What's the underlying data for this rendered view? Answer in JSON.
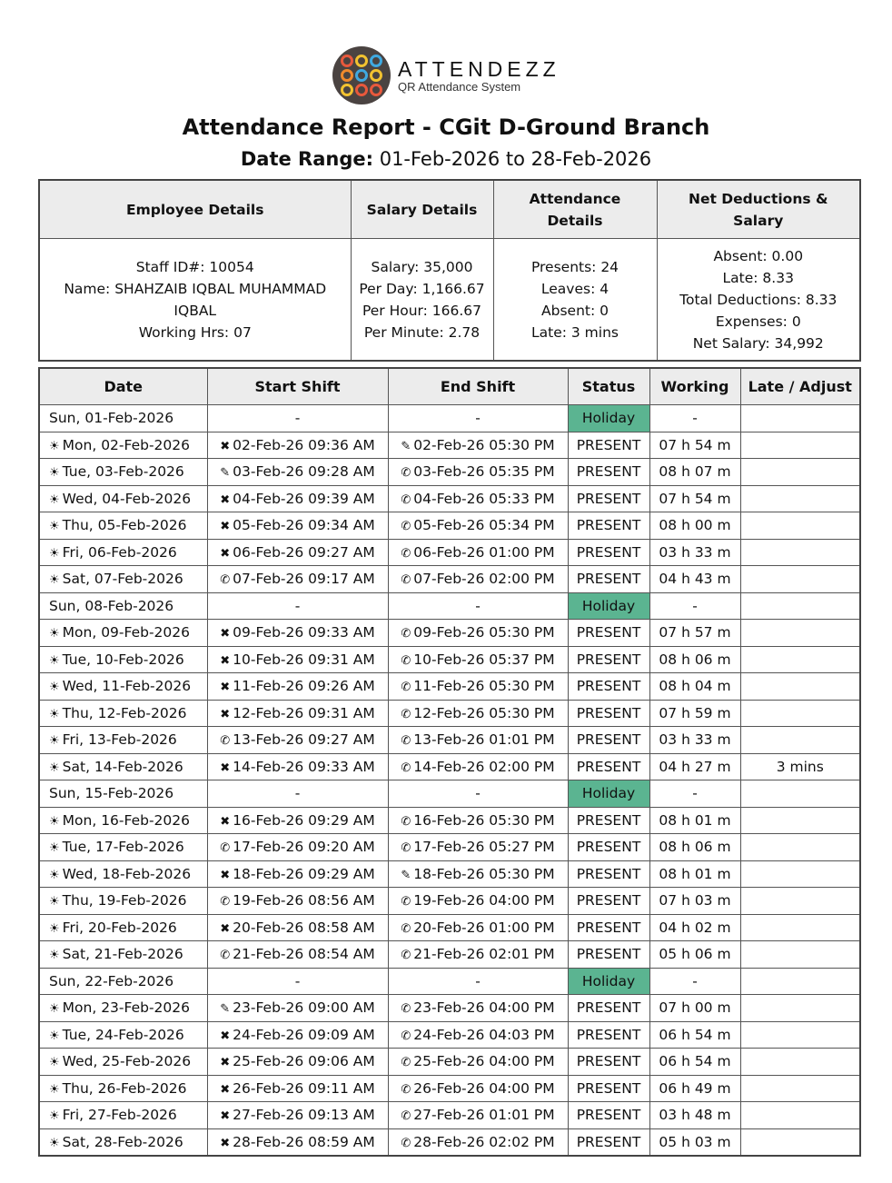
{
  "logo": {
    "name": "ATTENDEZZ",
    "tagline": "QR Attendance System"
  },
  "title": "Attendance Report - CGit D-Ground Branch",
  "date_range": {
    "label": "Date Range:",
    "value": "01-Feb-2026 to 28-Feb-2026"
  },
  "colors": {
    "holiday": "#5bb491",
    "header_bg": "#ececec"
  },
  "summary": {
    "headers": [
      "Employee Details",
      "Salary Details",
      "Attendance Details",
      "Net Deductions & Salary"
    ],
    "employee": [
      "Staff ID#: 10054",
      "Name: SHAHZAIB IQBAL MUHAMMAD IQBAL",
      "Working Hrs: 07"
    ],
    "salary": [
      "Salary: 35,000",
      "Per Day: 1,166.67",
      "Per Hour: 166.67",
      "Per Minute: 2.78"
    ],
    "attendance": [
      "Presents: 24",
      "Leaves: 4",
      "Absent: 0",
      "Late: 3 mins"
    ],
    "deductions": [
      "Absent: 0.00",
      "Late: 8.33",
      "Total Deductions: 8.33",
      "Expenses: 0",
      "Net Salary: 34,992"
    ]
  },
  "table": {
    "headers": [
      "Date",
      "Start Shift",
      "End Shift",
      "Status",
      "Working",
      "Late / Adjust"
    ],
    "icons": {
      "x": "✖",
      "p": "✎",
      "c": "✆",
      "sun": "☀"
    },
    "rows": [
      {
        "date": "Sun, 01-Feb-2026",
        "start": "-",
        "end": "-",
        "status": "Holiday",
        "working": "-",
        "late": ""
      },
      {
        "date": "Mon, 02-Feb-2026",
        "si": "x",
        "start": "02-Feb-26 09:36 AM",
        "ei": "p",
        "end": "02-Feb-26 05:30 PM",
        "status": "PRESENT",
        "working": "07 h 54 m",
        "late": ""
      },
      {
        "date": "Tue, 03-Feb-2026",
        "si": "p",
        "start": "03-Feb-26 09:28 AM",
        "ei": "c",
        "end": "03-Feb-26 05:35 PM",
        "status": "PRESENT",
        "working": "08 h 07 m",
        "late": ""
      },
      {
        "date": "Wed, 04-Feb-2026",
        "si": "x",
        "start": "04-Feb-26 09:39 AM",
        "ei": "c",
        "end": "04-Feb-26 05:33 PM",
        "status": "PRESENT",
        "working": "07 h 54 m",
        "late": ""
      },
      {
        "date": "Thu, 05-Feb-2026",
        "si": "x",
        "start": "05-Feb-26 09:34 AM",
        "ei": "c",
        "end": "05-Feb-26 05:34 PM",
        "status": "PRESENT",
        "working": "08 h 00 m",
        "late": ""
      },
      {
        "date": "Fri, 06-Feb-2026",
        "si": "x",
        "start": "06-Feb-26 09:27 AM",
        "ei": "c",
        "end": "06-Feb-26 01:00 PM",
        "status": "PRESENT",
        "working": "03 h 33 m",
        "late": ""
      },
      {
        "date": "Sat, 07-Feb-2026",
        "si": "c",
        "start": "07-Feb-26 09:17 AM",
        "ei": "c",
        "end": "07-Feb-26 02:00 PM",
        "status": "PRESENT",
        "working": "04 h 43 m",
        "late": ""
      },
      {
        "date": "Sun, 08-Feb-2026",
        "start": "-",
        "end": "-",
        "status": "Holiday",
        "working": "-",
        "late": ""
      },
      {
        "date": "Mon, 09-Feb-2026",
        "si": "x",
        "start": "09-Feb-26 09:33 AM",
        "ei": "c",
        "end": "09-Feb-26 05:30 PM",
        "status": "PRESENT",
        "working": "07 h 57 m",
        "late": ""
      },
      {
        "date": "Tue, 10-Feb-2026",
        "si": "x",
        "start": "10-Feb-26 09:31 AM",
        "ei": "c",
        "end": "10-Feb-26 05:37 PM",
        "status": "PRESENT",
        "working": "08 h 06 m",
        "late": ""
      },
      {
        "date": "Wed, 11-Feb-2026",
        "si": "x",
        "start": "11-Feb-26 09:26 AM",
        "ei": "c",
        "end": "11-Feb-26 05:30 PM",
        "status": "PRESENT",
        "working": "08 h 04 m",
        "late": ""
      },
      {
        "date": "Thu, 12-Feb-2026",
        "si": "x",
        "start": "12-Feb-26 09:31 AM",
        "ei": "c",
        "end": "12-Feb-26 05:30 PM",
        "status": "PRESENT",
        "working": "07 h 59 m",
        "late": ""
      },
      {
        "date": "Fri, 13-Feb-2026",
        "si": "c",
        "start": "13-Feb-26 09:27 AM",
        "ei": "c",
        "end": "13-Feb-26 01:01 PM",
        "status": "PRESENT",
        "working": "03 h 33 m",
        "late": ""
      },
      {
        "date": "Sat, 14-Feb-2026",
        "si": "x",
        "start": "14-Feb-26 09:33 AM",
        "ei": "c",
        "end": "14-Feb-26 02:00 PM",
        "status": "PRESENT",
        "working": "04 h 27 m",
        "late": "3 mins"
      },
      {
        "date": "Sun, 15-Feb-2026",
        "start": "-",
        "end": "-",
        "status": "Holiday",
        "working": "-",
        "late": ""
      },
      {
        "date": "Mon, 16-Feb-2026",
        "si": "x",
        "start": "16-Feb-26 09:29 AM",
        "ei": "c",
        "end": "16-Feb-26 05:30 PM",
        "status": "PRESENT",
        "working": "08 h 01 m",
        "late": ""
      },
      {
        "date": "Tue, 17-Feb-2026",
        "si": "c",
        "start": "17-Feb-26 09:20 AM",
        "ei": "c",
        "end": "17-Feb-26 05:27 PM",
        "status": "PRESENT",
        "working": "08 h 06 m",
        "late": ""
      },
      {
        "date": "Wed, 18-Feb-2026",
        "si": "x",
        "start": "18-Feb-26 09:29 AM",
        "ei": "p",
        "end": "18-Feb-26 05:30 PM",
        "status": "PRESENT",
        "working": "08 h 01 m",
        "late": ""
      },
      {
        "date": "Thu, 19-Feb-2026",
        "si": "c",
        "start": "19-Feb-26 08:56 AM",
        "ei": "c",
        "end": "19-Feb-26 04:00 PM",
        "status": "PRESENT",
        "working": "07 h 03 m",
        "late": ""
      },
      {
        "date": "Fri, 20-Feb-2026",
        "si": "x",
        "start": "20-Feb-26 08:58 AM",
        "ei": "c",
        "end": "20-Feb-26 01:00 PM",
        "status": "PRESENT",
        "working": "04 h 02 m",
        "late": ""
      },
      {
        "date": "Sat, 21-Feb-2026",
        "si": "c",
        "start": "21-Feb-26 08:54 AM",
        "ei": "c",
        "end": "21-Feb-26 02:01 PM",
        "status": "PRESENT",
        "working": "05 h 06 m",
        "late": ""
      },
      {
        "date": "Sun, 22-Feb-2026",
        "start": "-",
        "end": "-",
        "status": "Holiday",
        "working": "-",
        "late": ""
      },
      {
        "date": "Mon, 23-Feb-2026",
        "si": "p",
        "start": "23-Feb-26 09:00 AM",
        "ei": "c",
        "end": "23-Feb-26 04:00 PM",
        "status": "PRESENT",
        "working": "07 h 00 m",
        "late": ""
      },
      {
        "date": "Tue, 24-Feb-2026",
        "si": "x",
        "start": "24-Feb-26 09:09 AM",
        "ei": "c",
        "end": "24-Feb-26 04:03 PM",
        "status": "PRESENT",
        "working": "06 h 54 m",
        "late": ""
      },
      {
        "date": "Wed, 25-Feb-2026",
        "si": "x",
        "start": "25-Feb-26 09:06 AM",
        "ei": "c",
        "end": "25-Feb-26 04:00 PM",
        "status": "PRESENT",
        "working": "06 h 54 m",
        "late": ""
      },
      {
        "date": "Thu, 26-Feb-2026",
        "si": "x",
        "start": "26-Feb-26 09:11 AM",
        "ei": "c",
        "end": "26-Feb-26 04:00 PM",
        "status": "PRESENT",
        "working": "06 h 49 m",
        "late": ""
      },
      {
        "date": "Fri, 27-Feb-2026",
        "si": "x",
        "start": "27-Feb-26 09:13 AM",
        "ei": "c",
        "end": "27-Feb-26 01:01 PM",
        "status": "PRESENT",
        "working": "03 h 48 m",
        "late": ""
      },
      {
        "date": "Sat, 28-Feb-2026",
        "si": "x",
        "start": "28-Feb-26 08:59 AM",
        "ei": "c",
        "end": "28-Feb-26 02:02 PM",
        "status": "PRESENT",
        "working": "05 h 03 m",
        "late": ""
      }
    ]
  }
}
